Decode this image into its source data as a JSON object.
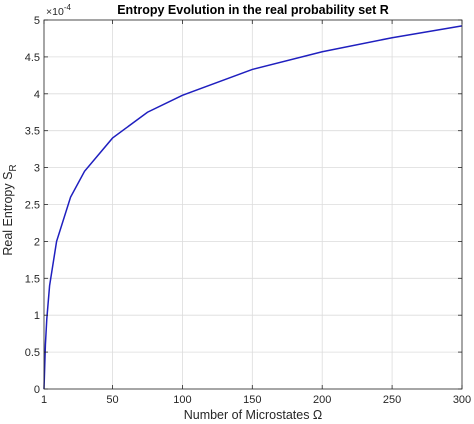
{
  "chart_data": {
    "type": "line",
    "title": "Entropy Evolution in the real probability set R",
    "xlabel": "Number of Microstates Ω",
    "ylabel_main": "Real  Entropy  S",
    "ylabel_sub": "R",
    "y_exponent_base": "×10",
    "y_exponent": "-4",
    "xlim": [
      1,
      300
    ],
    "ylim": [
      0,
      5
    ],
    "x_tick_labels": [
      "1",
      "50",
      "100",
      "150",
      "200",
      "250",
      "300"
    ],
    "y_tick_labels": [
      "0",
      "0.5",
      "1",
      "1.5",
      "2",
      "2.5",
      "3",
      "3.5",
      "4",
      "4.5",
      "5"
    ],
    "grid": true,
    "series": [
      {
        "color": "#1f1fbf",
        "x": [
          1,
          2,
          3,
          5,
          10,
          20,
          30,
          50,
          75,
          100,
          150,
          200,
          250,
          300
        ],
        "y": [
          0,
          0.6,
          0.95,
          1.4,
          2.0,
          2.6,
          2.95,
          3.4,
          3.75,
          3.98,
          4.33,
          4.57,
          4.76,
          4.92
        ]
      }
    ]
  }
}
